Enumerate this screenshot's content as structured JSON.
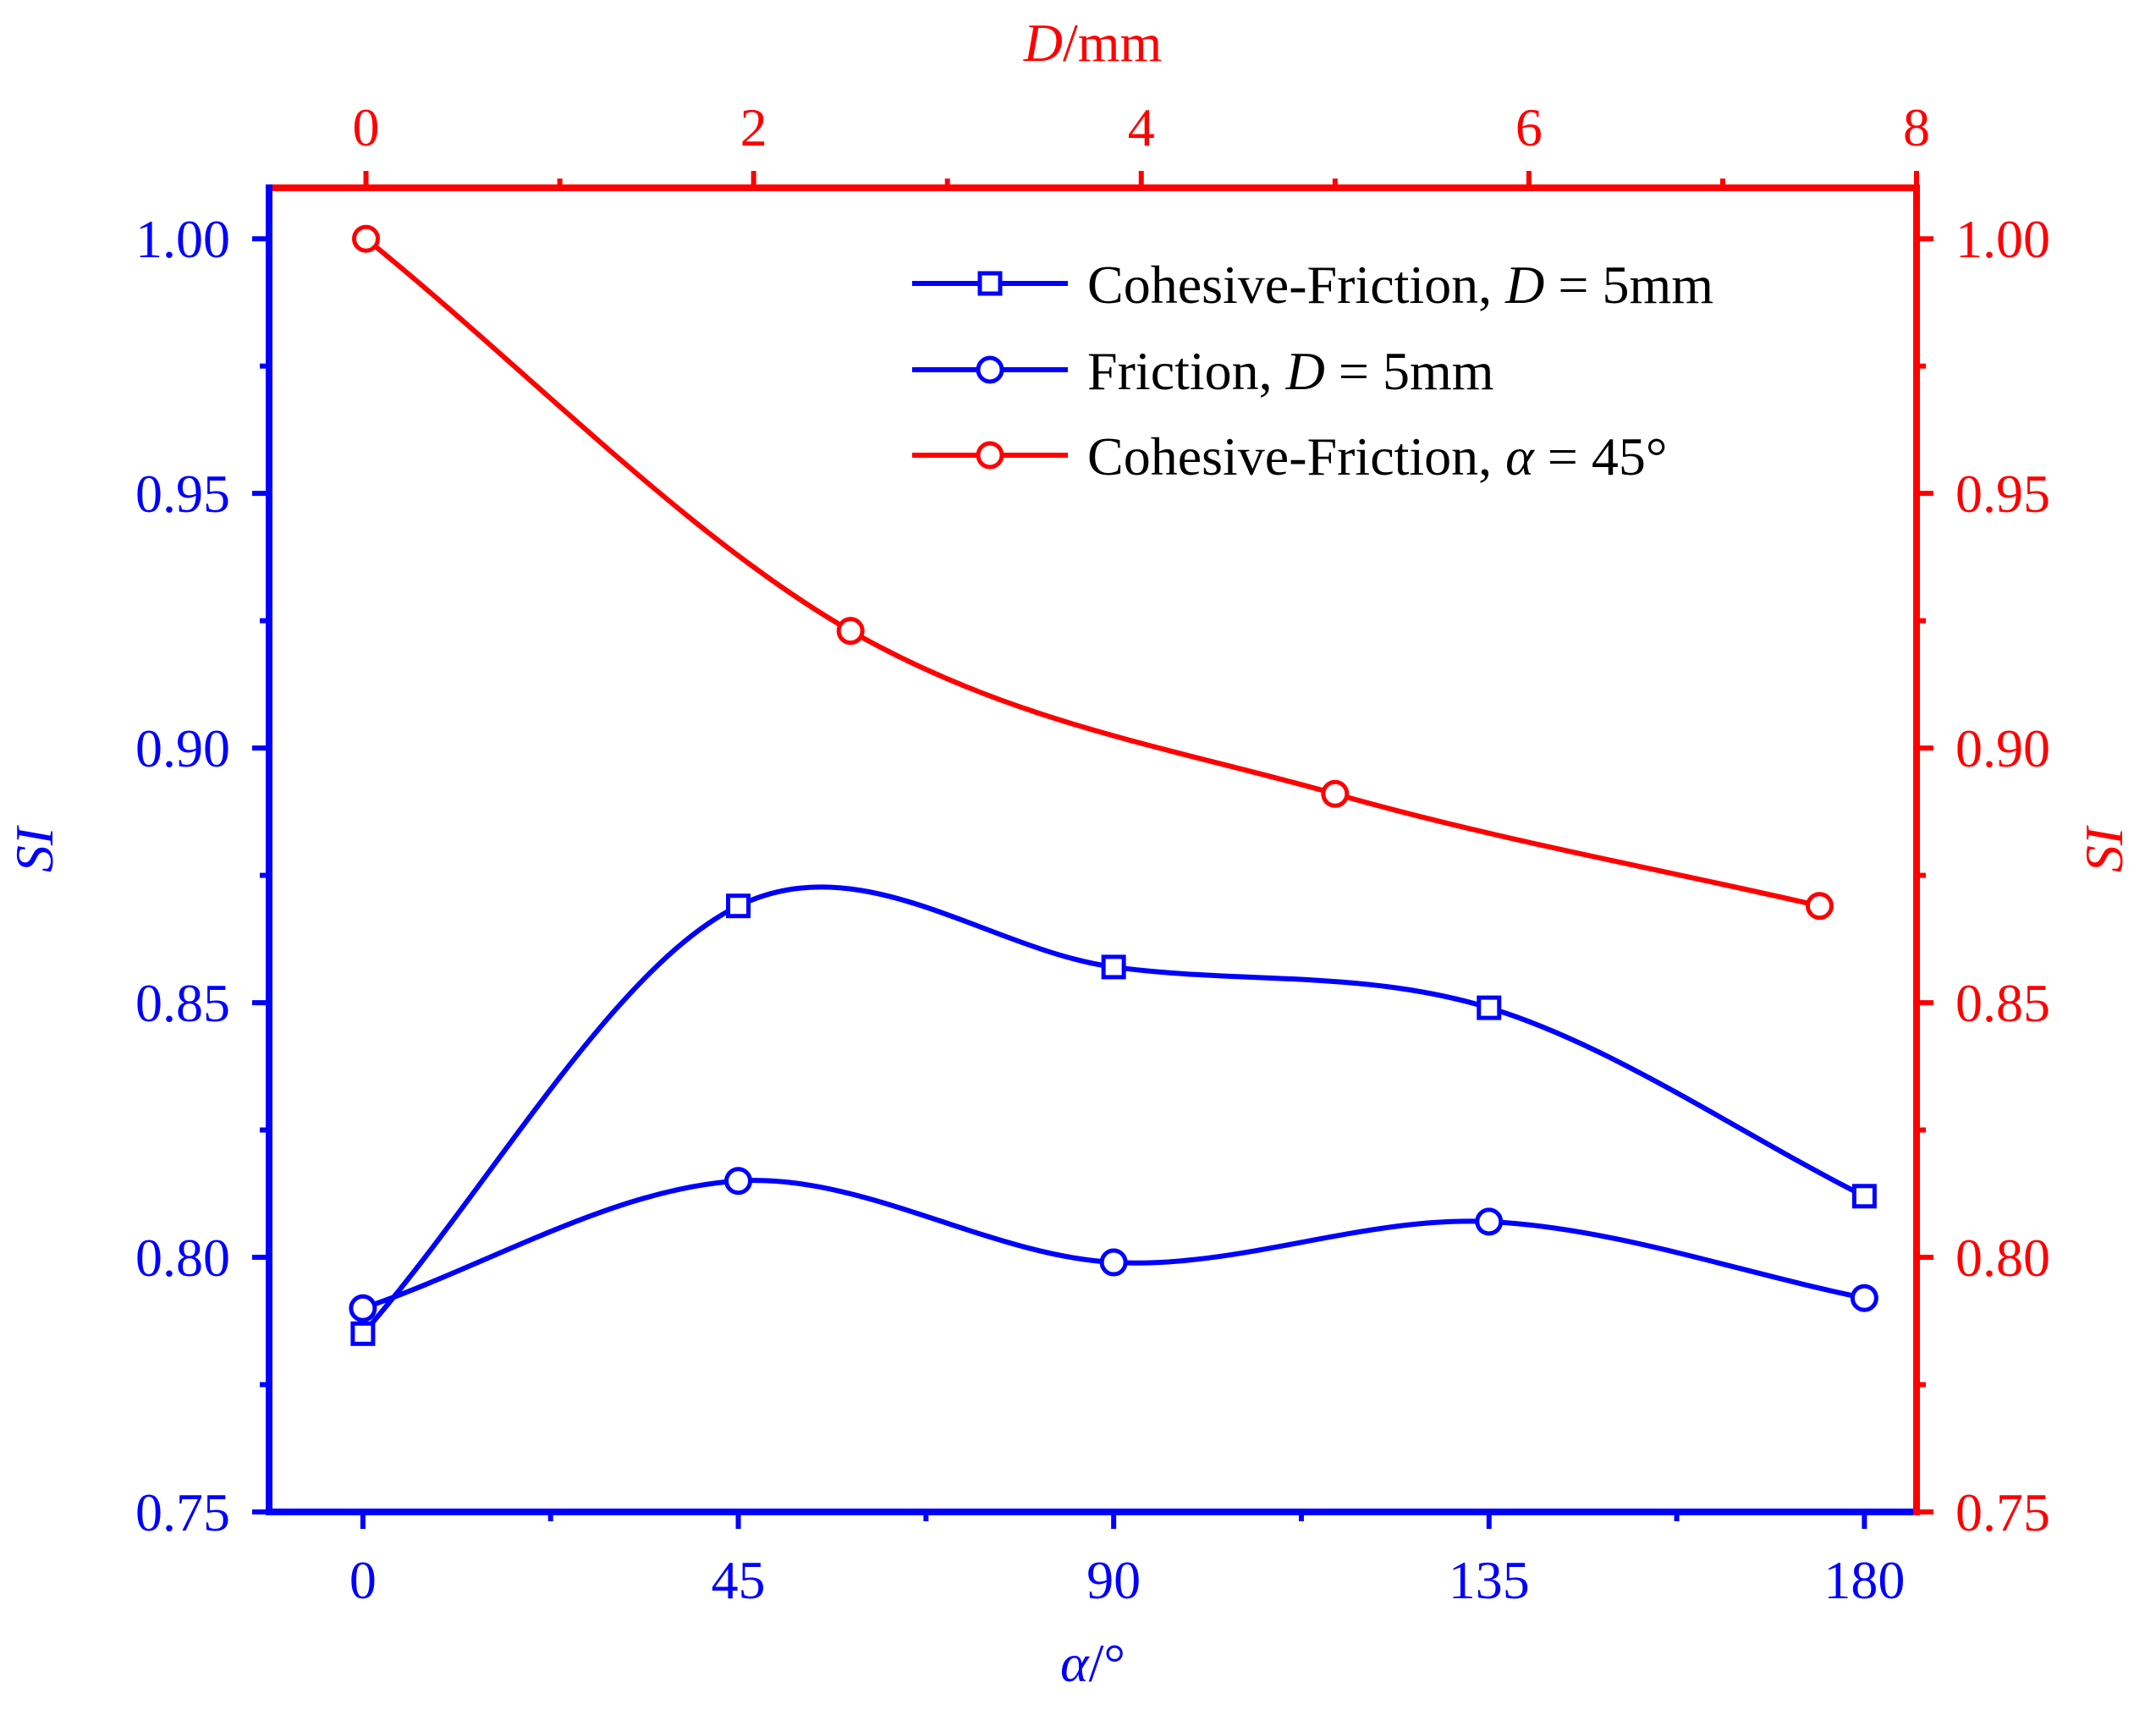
{
  "chart_data": {
    "type": "line",
    "colors": {
      "left": "#0000ff",
      "right": "#ff0000"
    },
    "x_bottom": {
      "label_var": "α",
      "label_unit": "/°",
      "ticks": [
        0,
        45,
        90,
        135,
        180
      ],
      "tick_labels": [
        "0",
        "45",
        "90",
        "135",
        "180"
      ],
      "range": [
        -11.25,
        186.25
      ]
    },
    "x_top": {
      "label_var": "D",
      "label_unit": "/mm",
      "ticks": [
        0,
        2,
        4,
        6,
        8
      ],
      "tick_labels": [
        "0",
        "2",
        "4",
        "6",
        "8"
      ],
      "range": [
        -0.5,
        8
      ]
    },
    "y_left": {
      "label": "SI",
      "ticks": [
        0.75,
        0.8,
        0.85,
        0.9,
        0.95,
        1.0
      ],
      "tick_labels": [
        "0.75",
        "0.80",
        "0.85",
        "0.90",
        "0.95",
        "1.00"
      ],
      "range": [
        0.75,
        1.01
      ]
    },
    "y_right": {
      "label": "SI",
      "ticks": [
        0.75,
        0.8,
        0.85,
        0.9,
        0.95,
        1.0
      ],
      "tick_labels": [
        "0.75",
        "0.80",
        "0.85",
        "0.90",
        "0.95",
        "1.00"
      ],
      "range": [
        0.75,
        1.01
      ]
    },
    "series": [
      {
        "name": "Cohesive-Friction, D = 5mm",
        "legend_prefix": "Cohesive-Friction, ",
        "legend_var": "D",
        "legend_suffix": " = 5mm",
        "axis": "bottom",
        "marker": "square",
        "color": "#0000ff",
        "x": [
          0,
          45,
          90,
          135,
          180
        ],
        "y": [
          0.785,
          0.869,
          0.857,
          0.849,
          0.812
        ]
      },
      {
        "name": "Friction, D = 5mm",
        "legend_prefix": "Friction, ",
        "legend_var": "D",
        "legend_suffix": " = 5mm",
        "axis": "bottom",
        "marker": "circle",
        "color": "#0000ff",
        "x": [
          0,
          45,
          90,
          135,
          180
        ],
        "y": [
          0.79,
          0.815,
          0.799,
          0.807,
          0.792
        ]
      },
      {
        "name": "Cohesive-Friction, α = 45°",
        "legend_prefix": "Cohesive-Friction, ",
        "legend_var": "α",
        "legend_suffix": " = 45°",
        "axis": "top",
        "marker": "circle",
        "color": "#ff0000",
        "x": [
          0,
          2.5,
          5,
          7.5
        ],
        "y": [
          1.0,
          0.923,
          0.891,
          0.869
        ]
      }
    ]
  }
}
